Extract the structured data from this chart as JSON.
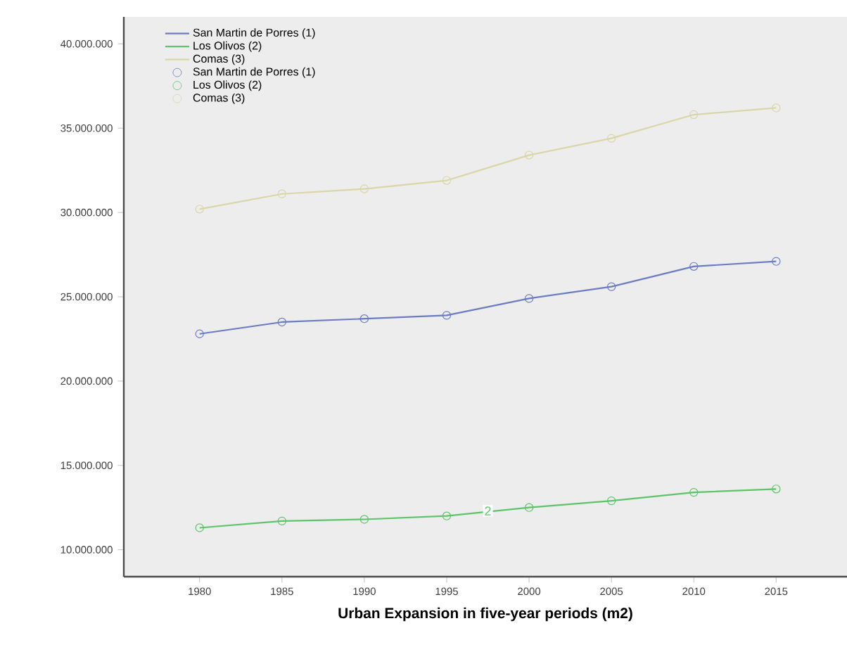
{
  "chart_data": {
    "type": "line",
    "xlabel": "**Urban Expansion in five-year periods (m2)**",
    "x": [
      1980,
      1985,
      1990,
      1995,
      2000,
      2005,
      2010,
      2015
    ],
    "series": [
      {
        "name": "San Martin de Porres (1)",
        "color": "#6b7bc4",
        "values": [
          22800000,
          23500000,
          23700000,
          23900000,
          24900000,
          25600000,
          26800000,
          27100000
        ]
      },
      {
        "name": "Los Olivos (2)",
        "color": "#5cc46a",
        "values": [
          11300000,
          11700000,
          11800000,
          12000000,
          12500000,
          12900000,
          13400000,
          13600000
        ]
      },
      {
        "name": "Comas (3)",
        "color": "#d9d6a8",
        "values": [
          30200000,
          31100000,
          31400000,
          31900000,
          33400000,
          34400000,
          35800000,
          36200000
        ]
      }
    ],
    "annotations": [
      {
        "text": "2",
        "x": 1997.5,
        "y": 12300000
      }
    ],
    "xlim": [
      1975.4,
      2019.3
    ],
    "ylim": [
      8400000,
      41600000
    ],
    "xticks": [
      1980,
      1985,
      1990,
      1995,
      2000,
      2005,
      2010,
      2015
    ],
    "yticks": [
      {
        "value": 10000000,
        "label": "10.000.000"
      },
      {
        "value": 15000000,
        "label": "15.000.000"
      },
      {
        "value": 20000000,
        "label": "20.000.000"
      },
      {
        "value": 25000000,
        "label": "25.000.000"
      },
      {
        "value": 30000000,
        "label": "30.000.000"
      },
      {
        "value": 35000000,
        "label": "35.000.000"
      },
      {
        "value": 40000000,
        "label": "40.000.000"
      }
    ],
    "grid": false,
    "legend": "top left",
    "marker": "circle",
    "line_style": "solid"
  }
}
